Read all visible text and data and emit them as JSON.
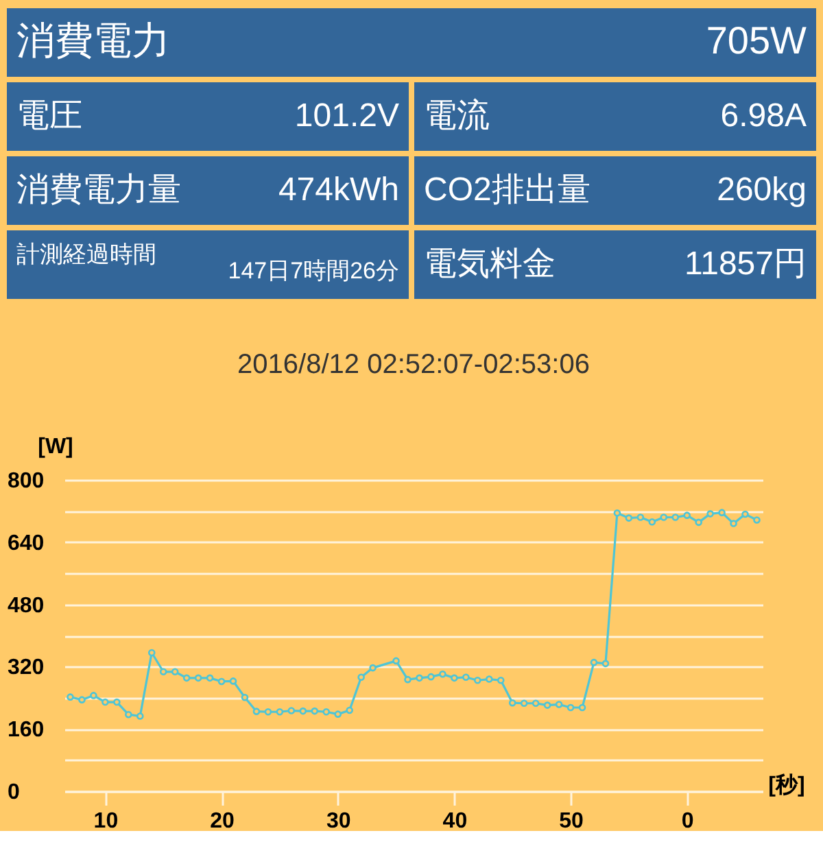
{
  "chart_data": [
    {
      "type": "other",
      "annotations": [
        "消費電力",
        "705W",
        "電圧",
        "101.2V",
        "電流",
        "6.98A",
        "消費電力量",
        "474kWh",
        "CO2排出量",
        "260kg",
        "計測経過時間",
        "147日7時間26分",
        "電気料金",
        "11857円"
      ]
    },
    {
      "type": "line",
      "title": "2016/8/12 02:52:07-02:53:06",
      "xlabel": "[秒]",
      "ylabel": "[W]",
      "x": [
        "2016-08-12T02:52:07",
        "2016-08-12T02:52:08",
        "2016-08-12T02:52:09",
        "2016-08-12T02:52:10",
        "2016-08-12T02:52:11",
        "2016-08-12T02:52:12",
        "2016-08-12T02:52:13",
        "2016-08-12T02:52:14",
        "2016-08-12T02:52:15",
        "2016-08-12T02:52:16",
        "2016-08-12T02:52:17",
        "2016-08-12T02:52:18",
        "2016-08-12T02:52:19",
        "2016-08-12T02:52:20",
        "2016-08-12T02:52:21",
        "2016-08-12T02:52:22",
        "2016-08-12T02:52:23",
        "2016-08-12T02:52:24",
        "2016-08-12T02:52:25",
        "2016-08-12T02:52:26",
        "2016-08-12T02:52:27",
        "2016-08-12T02:52:28",
        "2016-08-12T02:52:29",
        "2016-08-12T02:52:30",
        "2016-08-12T02:52:31",
        "2016-08-12T02:52:32",
        "2016-08-12T02:52:33",
        "2016-08-12T02:52:35",
        "2016-08-12T02:52:36",
        "2016-08-12T02:52:37",
        "2016-08-12T02:52:38",
        "2016-08-12T02:52:39",
        "2016-08-12T02:52:40",
        "2016-08-12T02:52:41",
        "2016-08-12T02:52:42",
        "2016-08-12T02:52:43",
        "2016-08-12T02:52:44",
        "2016-08-12T02:52:45",
        "2016-08-12T02:52:46",
        "2016-08-12T02:52:47",
        "2016-08-12T02:52:48",
        "2016-08-12T02:52:49",
        "2016-08-12T02:52:50",
        "2016-08-12T02:52:51",
        "2016-08-12T02:52:52",
        "2016-08-12T02:52:53",
        "2016-08-12T02:52:54",
        "2016-08-12T02:52:55",
        "2016-08-12T02:52:56",
        "2016-08-12T02:52:57",
        "2016-08-12T02:52:58",
        "2016-08-12T02:52:59",
        "2016-08-12T02:53:00",
        "2016-08-12T02:53:01",
        "2016-08-12T02:53:02",
        "2016-08-12T02:53:03",
        "2016-08-12T02:53:04",
        "2016-08-12T02:53:05",
        "2016-08-12T02:53:06"
      ],
      "series": [
        {
          "color": "#4EC5D6",
          "values": [
            242,
            235,
            246,
            229,
            229,
            197,
            193,
            356,
            307,
            307,
            291,
            291,
            291,
            282,
            283,
            241,
            205,
            204,
            204,
            207,
            206,
            206,
            204,
            198,
            208,
            293,
            317,
            335,
            287,
            291,
            294,
            301,
            291,
            293,
            285,
            288,
            285,
            227,
            226,
            226,
            221,
            223,
            215,
            215,
            331,
            328,
            715,
            702,
            704,
            692,
            704,
            704,
            709,
            691,
            713,
            716,
            688,
            712,
            697
          ]
        }
      ],
      "xlim": [
        "2016-08-12T02:52:06.5",
        "2016-08-12T02:53:06.5"
      ],
      "ylim": [
        0,
        800
      ],
      "xticks": [
        {
          "value": "2016-08-12T02:52:10",
          "label": "10"
        },
        {
          "value": "2016-08-12T02:52:20",
          "label": "20"
        },
        {
          "value": "2016-08-12T02:52:30",
          "label": "30"
        },
        {
          "value": "2016-08-12T02:52:40",
          "label": "40"
        },
        {
          "value": "2016-08-12T02:52:50",
          "label": "50"
        },
        {
          "value": "2016-08-12T02:53:00",
          "label": "0"
        }
      ],
      "yticks": [
        0,
        {
          "value": 80,
          "label": null
        },
        160,
        {
          "value": 240,
          "label": null
        },
        320,
        {
          "value": 400,
          "label": null
        },
        480,
        {
          "value": 560,
          "label": null
        },
        640,
        {
          "value": 720,
          "label": null
        },
        800
      ],
      "grid": "y",
      "marker": "circle"
    }
  ]
}
